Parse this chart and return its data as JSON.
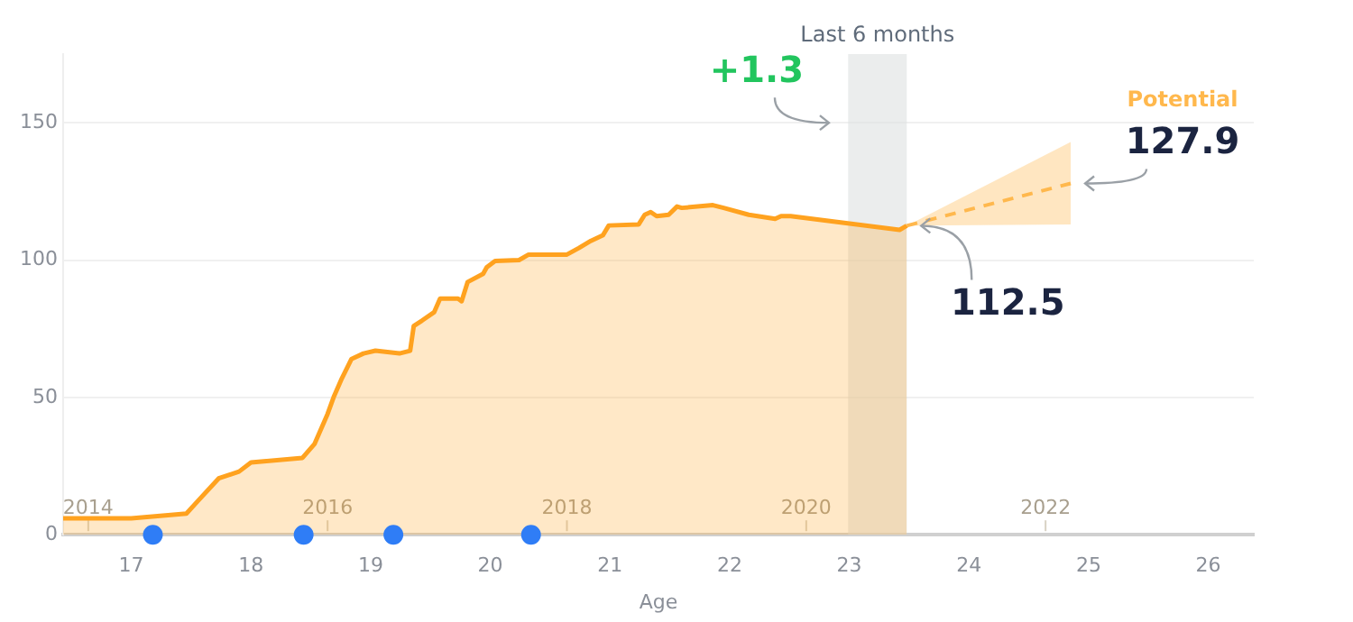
{
  "chart_data": {
    "type": "area",
    "xlabel": "Age",
    "xlim": [
      16.43,
      26.38
    ],
    "xticks": [
      17,
      18,
      19,
      20,
      21,
      22,
      23,
      24,
      25,
      26
    ],
    "ylim": [
      0,
      175
    ],
    "yticks": [
      0,
      50,
      100,
      150
    ],
    "x2lim": [
      2013.79,
      2023.74
    ],
    "x2ticks": [
      2014,
      2016,
      2018,
      2020,
      2022
    ],
    "grid": "y",
    "legend": false,
    "series": [
      {
        "color": "#ffa21f",
        "x": [
          16.43,
          17.0,
          17.46,
          17.55,
          17.73,
          17.9,
          18.0,
          18.43,
          18.53,
          18.64,
          18.69,
          18.76,
          18.84,
          18.94,
          19.04,
          19.24,
          19.33,
          19.36,
          19.43,
          19.53,
          19.58,
          19.73,
          19.76,
          19.81,
          19.94,
          19.97,
          20.04,
          20.24,
          20.32,
          20.64,
          20.74,
          20.84,
          20.94,
          20.99,
          21.24,
          21.29,
          21.34,
          21.39,
          21.49,
          21.56,
          21.6,
          21.86,
          21.95,
          22.16,
          22.38,
          22.43,
          22.51,
          23.42,
          23.48
        ],
        "values": [
          6,
          6,
          7.7,
          12,
          20.5,
          23,
          26.3,
          28,
          33,
          44,
          50,
          57,
          64,
          66,
          67,
          66,
          67,
          76,
          78,
          81,
          86,
          86,
          85,
          92,
          95,
          97.4,
          99.7,
          100,
          102,
          102,
          104.4,
          107,
          109,
          112.6,
          113,
          116.5,
          117.5,
          116,
          116.5,
          119.5,
          119,
          120,
          119,
          116.5,
          115,
          116,
          116,
          111,
          112.5
        ]
      },
      {
        "type": "line",
        "name": "Potential",
        "color": "#ffb84d",
        "line_style": "dashed",
        "x": [
          23.48,
          24.85
        ],
        "values": [
          112.5,
          127.9
        ],
        "lower": [
          112.5,
          113
        ],
        "upper": [
          112.5,
          143
        ]
      },
      {
        "type": "scatter",
        "color": "#2f7df6",
        "marker": "circle",
        "x": [
          17.18,
          18.44,
          19.19,
          20.34
        ],
        "values": [
          0,
          0,
          0,
          0
        ]
      }
    ],
    "bands": [
      {
        "axis": "x",
        "from": 22.99,
        "to": 23.48,
        "label": "Last 6 months",
        "color": "#dde1e1"
      }
    ],
    "annotations": [
      {
        "text": "+1.3",
        "x": 22.95,
        "y": 150
      },
      {
        "text": "112.5",
        "x": 23.48,
        "y": 112.5
      },
      {
        "text": "127.9",
        "x": 24.85,
        "y": 127.9
      }
    ]
  }
}
